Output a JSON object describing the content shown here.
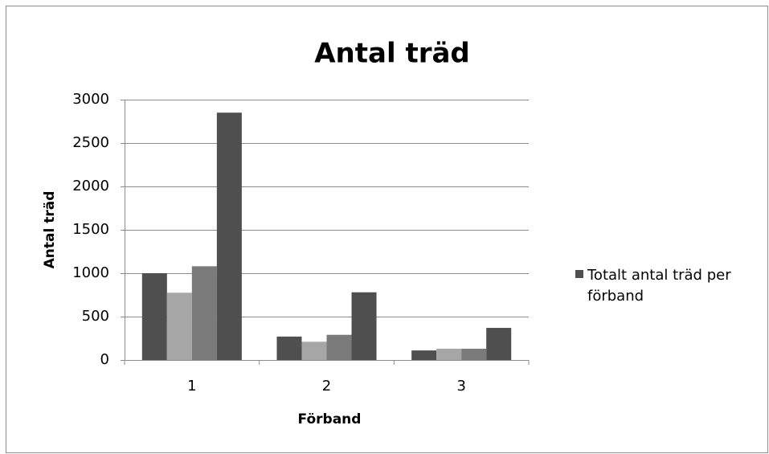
{
  "chart_data": {
    "type": "bar",
    "title": "Antal träd",
    "xlabel": "Förband",
    "ylabel": "Antal träd",
    "categories": [
      "1",
      "2",
      "3"
    ],
    "series": [
      {
        "color": "#4f4f4f",
        "values": [
          1000,
          270,
          110
        ]
      },
      {
        "color": "#a6a6a6",
        "values": [
          775,
          210,
          130
        ]
      },
      {
        "color": "#7a7a7a",
        "values": [
          1080,
          290,
          130
        ]
      },
      {
        "name": "Totalt antal träd per förband",
        "color": "#4f4f4f",
        "values": [
          2850,
          780,
          370
        ]
      }
    ],
    "ylim": [
      0,
      3000
    ],
    "yticks": [
      0,
      500,
      1000,
      1500,
      2000,
      2500,
      3000
    ],
    "grid": true,
    "legend": "right"
  }
}
